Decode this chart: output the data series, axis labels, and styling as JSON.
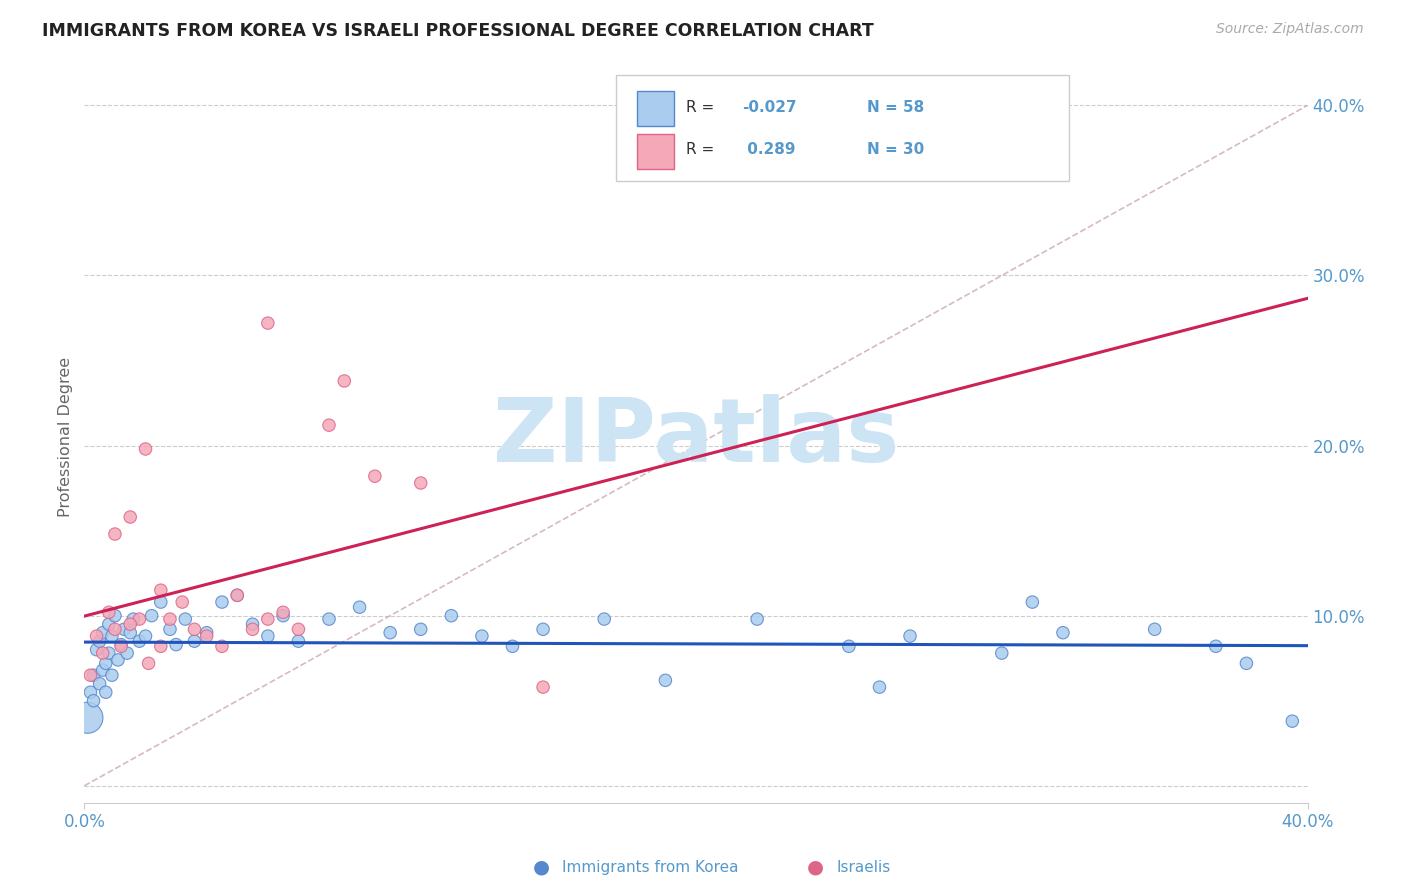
{
  "title": "IMMIGRANTS FROM KOREA VS ISRAELI PROFESSIONAL DEGREE CORRELATION CHART",
  "source": "Source: ZipAtlas.com",
  "ylabel": "Professional Degree",
  "xlim": [
    0.0,
    0.4
  ],
  "ylim": [
    -0.01,
    0.42
  ],
  "color_korea": "#aaccee",
  "color_korea_edge": "#5588cc",
  "color_israel": "#f4a8b8",
  "color_israel_edge": "#dd6688",
  "line_color_korea": "#2255bb",
  "line_color_israel": "#cc2255",
  "diag_line_color": "#ccaaaa",
  "watermark_color": "#cce4f4",
  "background_color": "#ffffff",
  "grid_color": "#cccccc",
  "tick_color": "#5599cc",
  "title_color": "#222222",
  "source_color": "#aaaaaa",
  "ylabel_color": "#666666",
  "legend_r1_val": "-0.027",
  "legend_n1_val": "58",
  "legend_r2_val": "0.289",
  "legend_n2_val": "30",
  "korea_x": [
    0.001,
    0.002,
    0.003,
    0.003,
    0.004,
    0.005,
    0.005,
    0.006,
    0.006,
    0.007,
    0.007,
    0.008,
    0.008,
    0.009,
    0.009,
    0.01,
    0.011,
    0.012,
    0.013,
    0.014,
    0.015,
    0.016,
    0.018,
    0.02,
    0.022,
    0.025,
    0.028,
    0.03,
    0.033,
    0.036,
    0.04,
    0.045,
    0.05,
    0.055,
    0.06,
    0.065,
    0.07,
    0.08,
    0.09,
    0.1,
    0.11,
    0.12,
    0.13,
    0.14,
    0.15,
    0.17,
    0.19,
    0.22,
    0.25,
    0.27,
    0.3,
    0.32,
    0.35,
    0.37,
    0.395,
    0.38,
    0.26,
    0.31
  ],
  "korea_y": [
    0.04,
    0.055,
    0.065,
    0.05,
    0.08,
    0.085,
    0.06,
    0.068,
    0.09,
    0.055,
    0.072,
    0.078,
    0.095,
    0.065,
    0.088,
    0.1,
    0.074,
    0.083,
    0.092,
    0.078,
    0.09,
    0.098,
    0.085,
    0.088,
    0.1,
    0.108,
    0.092,
    0.083,
    0.098,
    0.085,
    0.09,
    0.108,
    0.112,
    0.095,
    0.088,
    0.1,
    0.085,
    0.098,
    0.105,
    0.09,
    0.092,
    0.1,
    0.088,
    0.082,
    0.092,
    0.098,
    0.062,
    0.098,
    0.082,
    0.088,
    0.078,
    0.09,
    0.092,
    0.082,
    0.038,
    0.072,
    0.058,
    0.108
  ],
  "korea_size": [
    500,
    80,
    80,
    80,
    80,
    80,
    80,
    80,
    80,
    80,
    80,
    80,
    80,
    80,
    80,
    80,
    80,
    80,
    80,
    80,
    80,
    80,
    80,
    80,
    80,
    80,
    80,
    80,
    80,
    80,
    80,
    80,
    80,
    80,
    80,
    80,
    80,
    80,
    80,
    80,
    80,
    80,
    80,
    80,
    80,
    80,
    80,
    80,
    80,
    80,
    80,
    80,
    80,
    80,
    80,
    80,
    80,
    80
  ],
  "israel_x": [
    0.002,
    0.004,
    0.006,
    0.008,
    0.01,
    0.012,
    0.015,
    0.018,
    0.021,
    0.025,
    0.028,
    0.032,
    0.036,
    0.04,
    0.045,
    0.05,
    0.055,
    0.06,
    0.065,
    0.07,
    0.01,
    0.015,
    0.02,
    0.025,
    0.06,
    0.08,
    0.085,
    0.095,
    0.11,
    0.15
  ],
  "israel_y": [
    0.065,
    0.088,
    0.078,
    0.102,
    0.092,
    0.082,
    0.158,
    0.098,
    0.072,
    0.082,
    0.098,
    0.108,
    0.092,
    0.088,
    0.082,
    0.112,
    0.092,
    0.098,
    0.102,
    0.092,
    0.148,
    0.095,
    0.198,
    0.115,
    0.272,
    0.212,
    0.238,
    0.182,
    0.178,
    0.058
  ],
  "israel_size": [
    80,
    80,
    80,
    80,
    80,
    80,
    80,
    80,
    80,
    80,
    80,
    80,
    80,
    80,
    80,
    80,
    80,
    80,
    80,
    80,
    80,
    80,
    80,
    80,
    80,
    80,
    80,
    80,
    80,
    80
  ]
}
